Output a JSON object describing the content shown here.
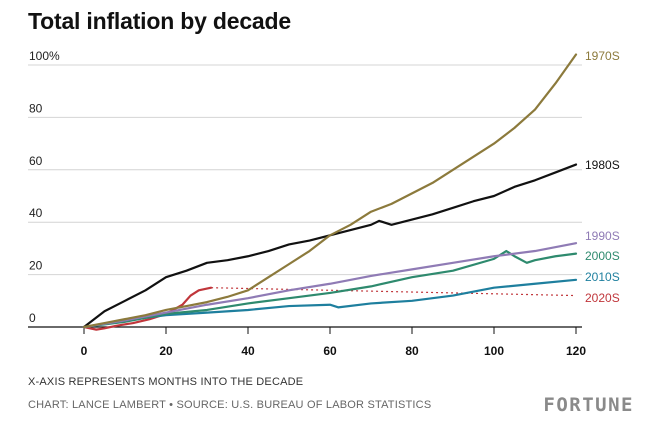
{
  "title": "Total inflation by decade",
  "notes": {
    "xaxis_note": "X-AXIS REPRESENTS MONTHS INTO THE DECADE",
    "credit": "CHART: LANCE LAMBERT • SOURCE: U.S. BUREAU OF LABOR STATISTICS"
  },
  "brand": "FORTUNE",
  "chart_data": {
    "type": "line",
    "title": "Total inflation by decade",
    "xlabel": "",
    "ylabel": "",
    "xlim": [
      0,
      120
    ],
    "ylim": [
      0,
      100
    ],
    "x_ticks": [
      "0",
      "20",
      "40",
      "60",
      "80",
      "100",
      "120"
    ],
    "y_ticks": [
      "0",
      "20",
      "40",
      "60",
      "80",
      "100%"
    ],
    "grid": "horizontal",
    "series": [
      {
        "name": "1970S",
        "color": "#8c7a3c",
        "x": [
          0,
          5,
          10,
          15,
          20,
          25,
          30,
          35,
          40,
          45,
          50,
          55,
          60,
          65,
          70,
          75,
          80,
          85,
          90,
          95,
          100,
          105,
          110,
          115,
          120
        ],
        "y": [
          0,
          1.5,
          3,
          4.5,
          6.5,
          8,
          9.5,
          11.5,
          14,
          19,
          24,
          29,
          35,
          39,
          44,
          47,
          51,
          55,
          60,
          65,
          70,
          76,
          83,
          93,
          104
        ]
      },
      {
        "name": "1980S",
        "color": "#111111",
        "x": [
          0,
          5,
          10,
          15,
          20,
          25,
          30,
          35,
          40,
          45,
          50,
          55,
          60,
          65,
          70,
          72,
          75,
          80,
          85,
          90,
          95,
          100,
          105,
          110,
          115,
          120
        ],
        "y": [
          0,
          6,
          10,
          14,
          19,
          21.5,
          24.5,
          25.5,
          27,
          29,
          31.5,
          33,
          35,
          37,
          39,
          40.5,
          39,
          41,
          43,
          45.5,
          48,
          50,
          53.5,
          56,
          59,
          62
        ]
      },
      {
        "name": "1990S",
        "color": "#8f7bb5",
        "x": [
          0,
          10,
          20,
          30,
          40,
          50,
          60,
          70,
          80,
          90,
          100,
          110,
          120
        ],
        "y": [
          0,
          2.5,
          5.5,
          8.5,
          11,
          14,
          16.5,
          19.5,
          22,
          24.5,
          27,
          29,
          32
        ]
      },
      {
        "name": "2000S",
        "color": "#2e8a6e",
        "x": [
          0,
          10,
          20,
          30,
          40,
          50,
          60,
          70,
          80,
          90,
          100,
          103,
          105,
          108,
          110,
          115,
          120
        ],
        "y": [
          0,
          2,
          5,
          6.5,
          9,
          11,
          13,
          15.5,
          19,
          21.5,
          26,
          29,
          27,
          24.5,
          25.5,
          27,
          28
        ]
      },
      {
        "name": "2010S",
        "color": "#1e7f9e",
        "x": [
          0,
          10,
          20,
          30,
          40,
          50,
          60,
          62,
          70,
          80,
          90,
          100,
          110,
          120
        ],
        "y": [
          0,
          2.5,
          4.5,
          5.5,
          6.5,
          8,
          8.5,
          7.5,
          9,
          10,
          12,
          15,
          16.5,
          18
        ]
      },
      {
        "name": "2020S",
        "color": "#c0363b",
        "x": [
          0,
          3,
          5,
          8,
          12,
          16,
          20,
          24,
          26,
          28,
          31
        ],
        "y": [
          0,
          -1,
          -0.5,
          0.5,
          1.5,
          3,
          5,
          8.5,
          12,
          14,
          15
        ],
        "projection": {
          "x": [
            31,
            120
          ],
          "y": [
            15,
            12
          ]
        }
      }
    ],
    "series_labels": [
      "1970S",
      "1980S",
      "1990S",
      "2000S",
      "2010S",
      "2020S"
    ]
  }
}
